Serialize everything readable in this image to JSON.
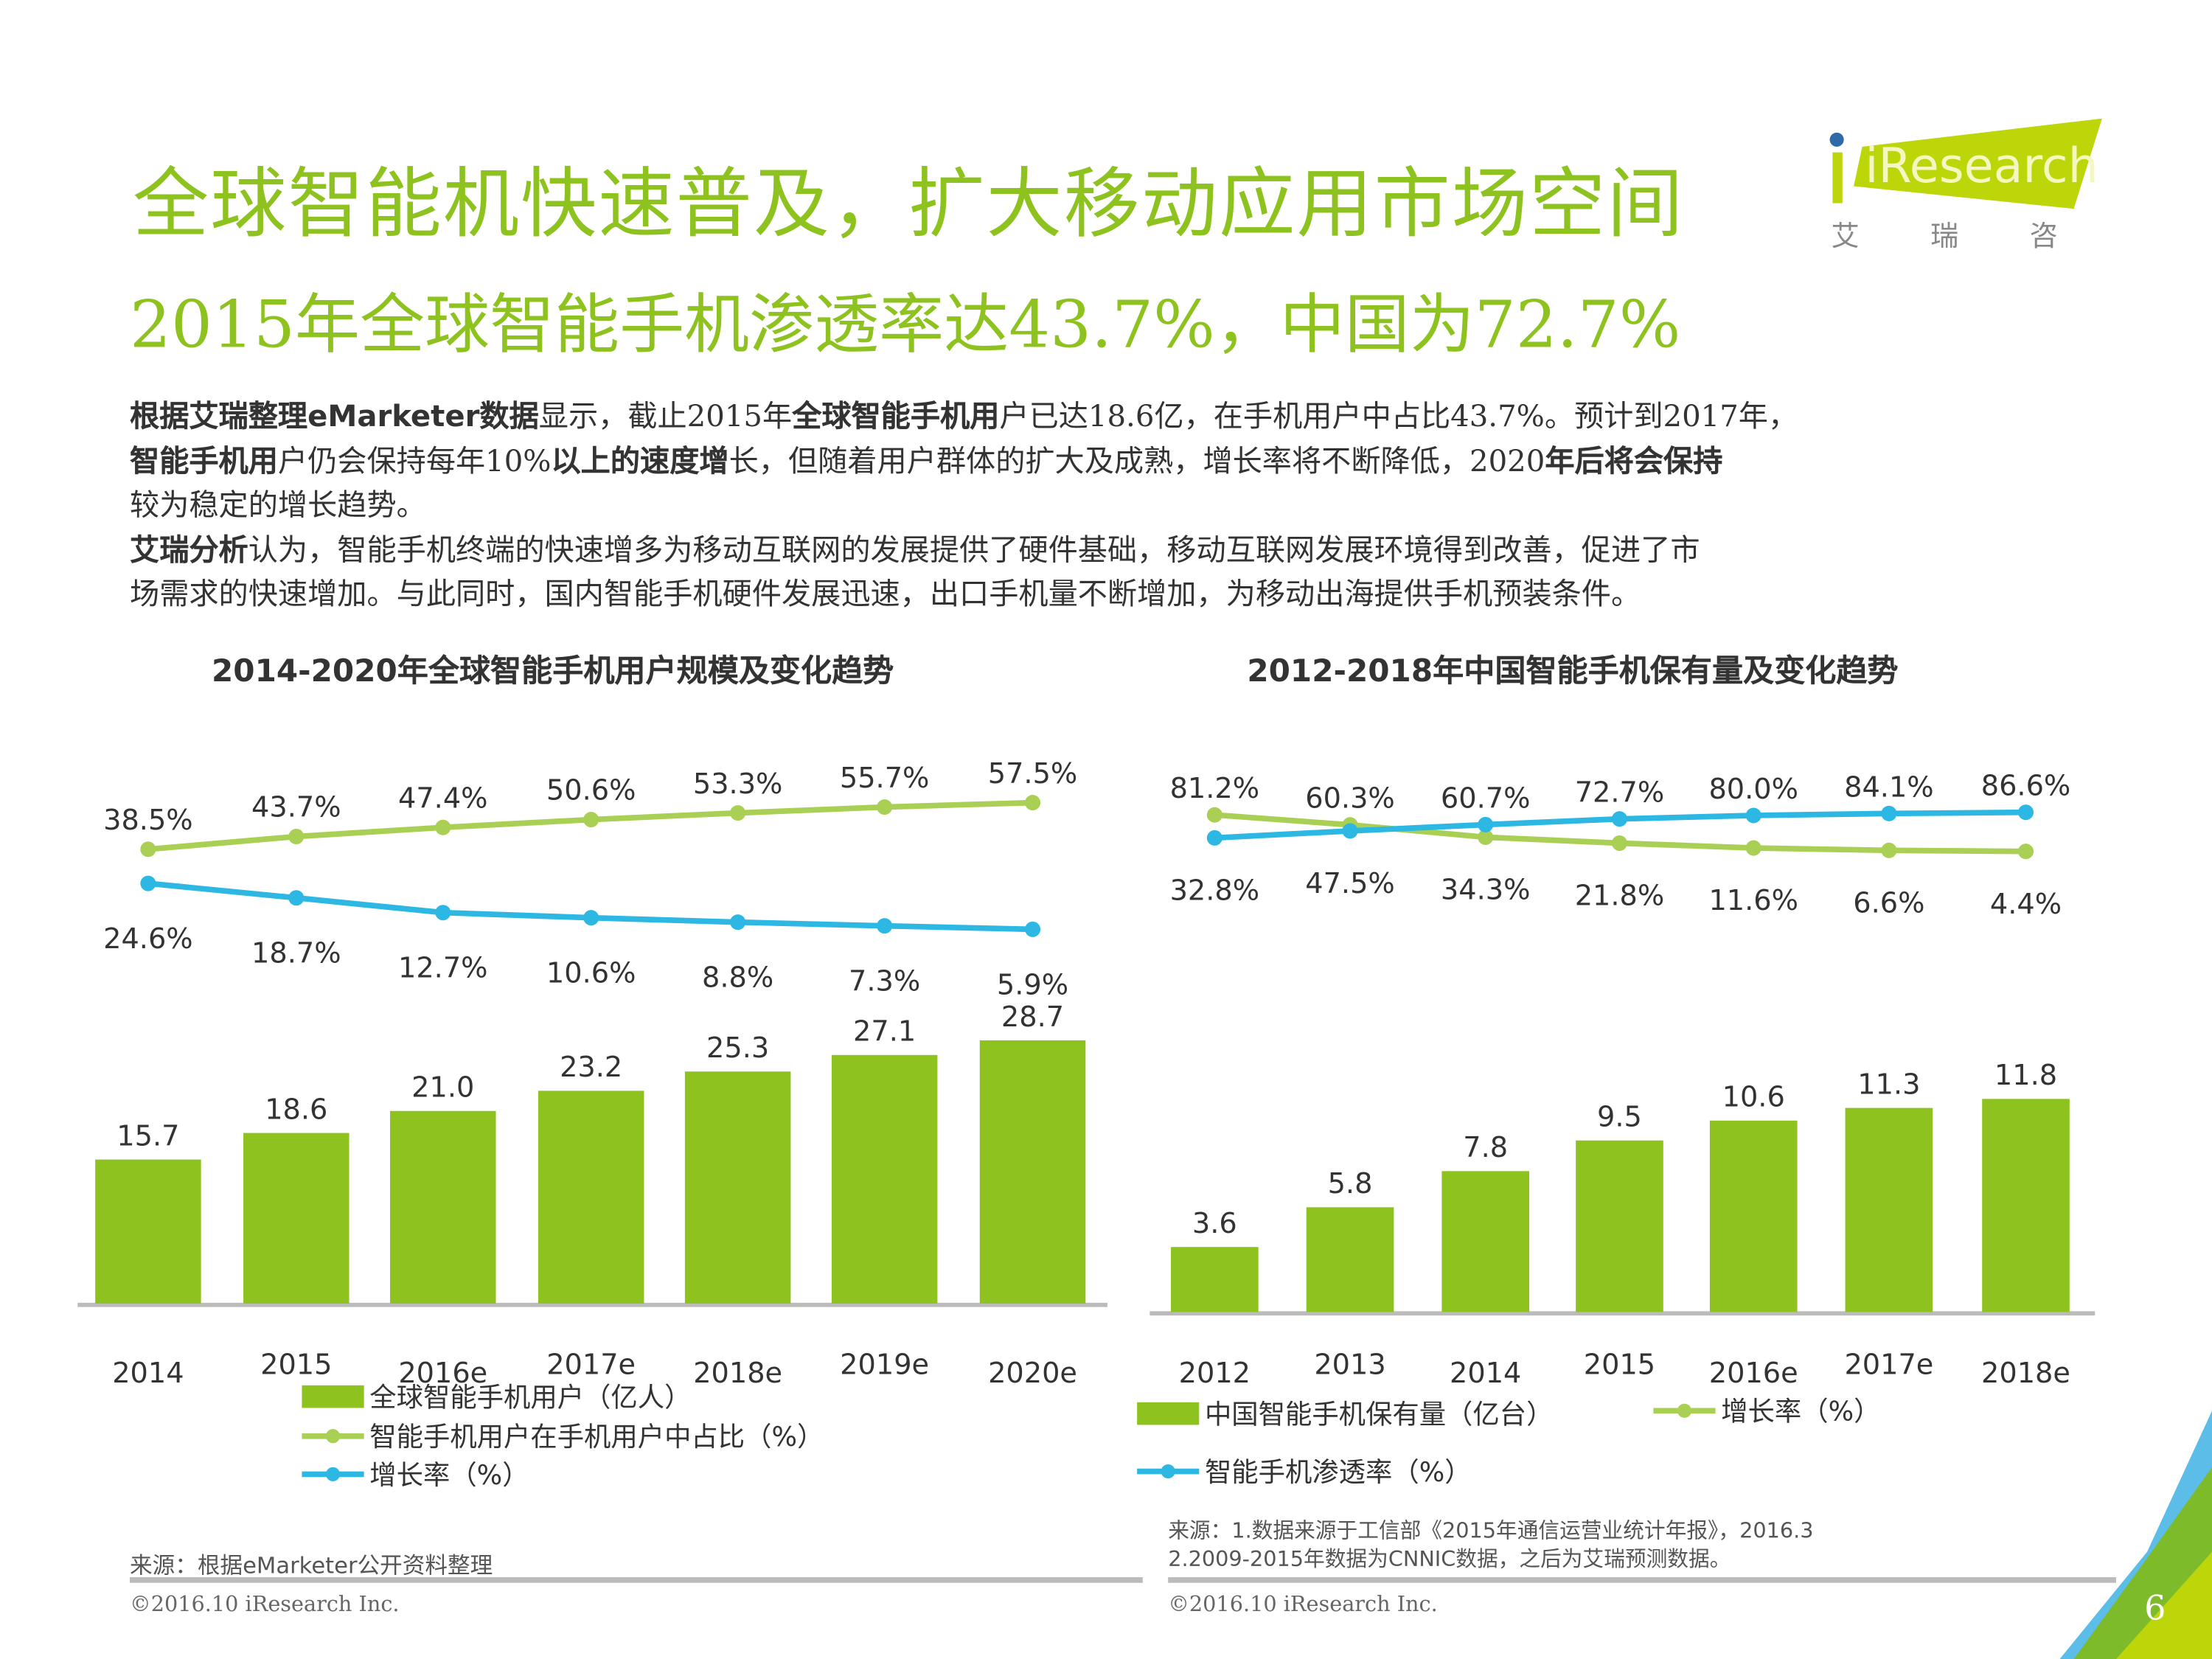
{
  "title": "全球智能机快速普及，扩大移动应用市场空间",
  "subtitle": "2015年全球智能手机渗透率达43.7%，中国为72.7%",
  "logo": {
    "text": "iResearch",
    "cn": "艾 瑞 咨 询"
  },
  "body_lines": [
    [
      {
        "t": "根据艾瑞整理eMarketer数据",
        "b": true
      },
      {
        "t": "显示，截止2015年",
        "b": false
      },
      {
        "t": "全球智能手机用",
        "b": true
      },
      {
        "t": "户已达18.6亿，在手机用户中占比43.7%。预计到2017年，",
        "b": false
      }
    ],
    [
      {
        "t": "智能手机用",
        "b": true
      },
      {
        "t": "户仍会保持每年10%",
        "b": false
      },
      {
        "t": "以上的速度增",
        "b": true
      },
      {
        "t": "长，但随着用户群体的扩大及成熟，增长率将不断降低，2020",
        "b": false
      },
      {
        "t": "年后将会保持",
        "b": true
      }
    ],
    [
      {
        "t": "较为稳定的增长趋势。",
        "b": false
      }
    ],
    [
      {
        "t": "艾瑞分析",
        "b": true
      },
      {
        "t": "认为，智能手机终端的快速增多为移动互联网的发展提供了硬件基础，移动互联网发展环境得到改善，促进了市",
        "b": false
      }
    ],
    [
      {
        "t": "场需求的快速增加。与此同时，国内智能手机硬件发展迅速，出口手机量不断增加，为移动出海提供手机预装条件。",
        "b": false
      }
    ]
  ],
  "colors": {
    "green_bar": "#8dc21f",
    "green_line": "#a9cf54",
    "blue_line": "#2db7e3",
    "title": "#8dc21f"
  },
  "chart_data": [
    {
      "type": "bar+line",
      "title": "2014-2020年全球智能手机用户规模及变化趋势",
      "categories": [
        "2014",
        "2015",
        "2016e",
        "2017e",
        "2018e",
        "2019e",
        "2020e"
      ],
      "bars": {
        "name": "全球智能手机用户（亿人）",
        "values": [
          15.7,
          18.6,
          21.0,
          23.2,
          25.3,
          27.1,
          28.7
        ],
        "labels": [
          "15.7",
          "18.6",
          "21.0",
          "23.2",
          "25.3",
          "27.1",
          "28.7"
        ]
      },
      "series": [
        {
          "name": "智能手机用户在手机用户中占比（%）",
          "color": "#a9cf54",
          "values": [
            38.5,
            43.7,
            47.4,
            50.6,
            53.3,
            55.7,
            57.5
          ],
          "labels": [
            "38.5%",
            "43.7%",
            "47.4%",
            "50.6%",
            "53.3%",
            "55.7%",
            "57.5%"
          ],
          "label_pos": [
            "above",
            "above",
            "above",
            "above",
            "above",
            "above",
            "above"
          ]
        },
        {
          "name": "增长率（%）",
          "color": "#2db7e3",
          "values": [
            24.6,
            18.7,
            12.7,
            10.6,
            8.8,
            7.3,
            5.9
          ],
          "labels": [
            "24.6%",
            "18.7%",
            "12.7%",
            "10.6%",
            "8.8%",
            "7.3%",
            "5.9%"
          ],
          "label_pos": [
            "below",
            "below",
            "below",
            "below",
            "below",
            "below",
            "below"
          ]
        }
      ],
      "legend_placement": "bottom",
      "source": "来源：根据eMarketer公开资料整理"
    },
    {
      "type": "bar+line",
      "title": "2012-2018年中国智能手机保有量及变化趋势",
      "categories": [
        "2012",
        "2013",
        "2014",
        "2015",
        "2016e",
        "2017e",
        "2018e"
      ],
      "bars": {
        "name": "中国智能手机保有量（亿台）",
        "values": [
          3.6,
          5.8,
          7.8,
          9.5,
          10.6,
          11.3,
          11.8
        ],
        "labels": [
          "3.6",
          "5.8",
          "7.8",
          "9.5",
          "10.6",
          "11.3",
          "11.8"
        ]
      },
      "series": [
        {
          "name": "增长率（%）",
          "color": "#a9cf54",
          "values": [
            81.2,
            60.3,
            34.3,
            21.8,
            11.6,
            6.6,
            4.4
          ],
          "labels": [
            "81.2%",
            "60.3%",
            "34.3%",
            "21.8%",
            "11.6%",
            "6.6%",
            "4.4%"
          ],
          "label_pos": [
            "above",
            "above",
            "below",
            "below",
            "below",
            "below",
            "below"
          ]
        },
        {
          "name": "智能手机渗透率（%）",
          "color": "#2db7e3",
          "values": [
            32.8,
            47.5,
            60.7,
            72.7,
            80.0,
            84.1,
            86.6
          ],
          "labels": [
            "32.8%",
            "47.5%",
            "60.7%",
            "72.7%",
            "80.0%",
            "84.1%",
            "86.6%"
          ],
          "label_pos": [
            "below",
            "below",
            "above",
            "above",
            "above",
            "above",
            "above"
          ]
        }
      ],
      "legend_placement": "bottom",
      "source_lines": [
        "来源：1.数据来源于工信部《2015年通信运营业统计年报》，2016.3",
        "2.2009-2015年数据为CNNIC数据，之后为艾瑞预测数据。"
      ]
    }
  ],
  "footer": {
    "copyright_left": "©2016.10  iResearch  Inc.",
    "copyright_right": "©2016.10  iResearch  Inc.",
    "page": "6"
  }
}
